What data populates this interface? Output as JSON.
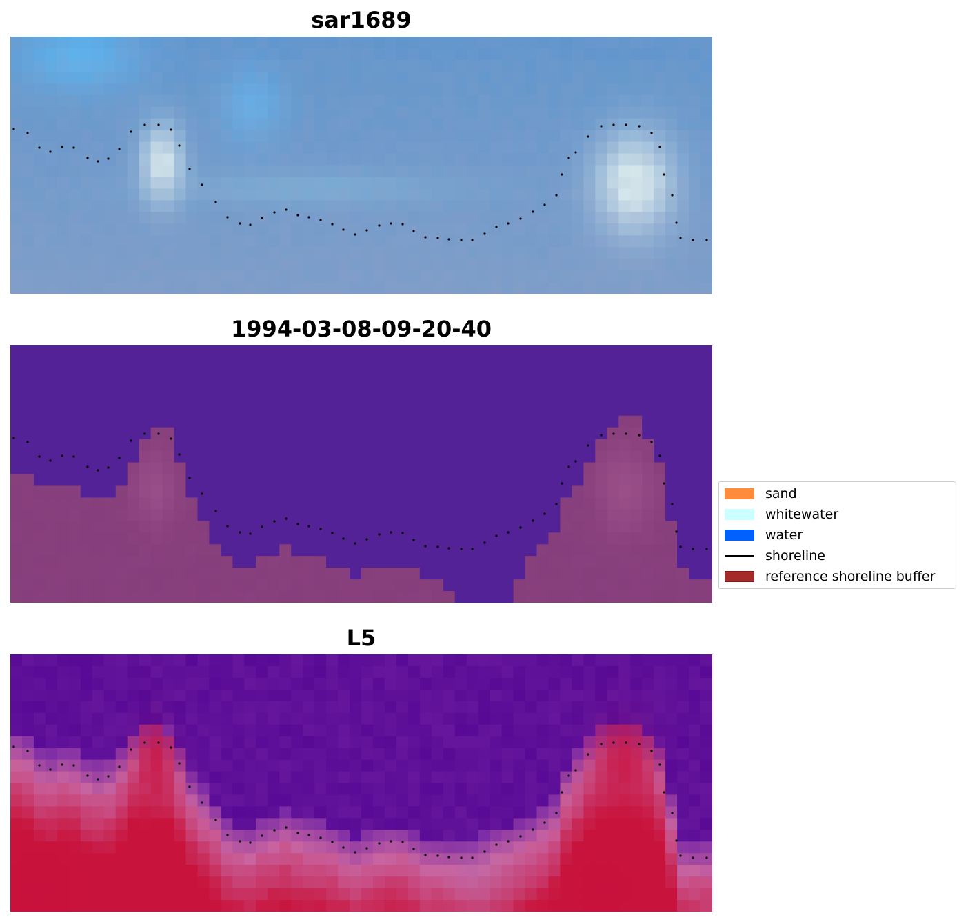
{
  "panels": [
    {
      "title": "sar1689",
      "kind": "rgb"
    },
    {
      "title": "1994-03-08-09-20-40",
      "kind": "classified"
    },
    {
      "title": "L5",
      "kind": "index"
    }
  ],
  "legend": {
    "items": [
      {
        "label": "sand",
        "color": "#ff8c3a",
        "style": "patch"
      },
      {
        "label": "whitewater",
        "color": "#ccffff",
        "style": "patch"
      },
      {
        "label": "water",
        "color": "#0061ff",
        "style": "patch"
      },
      {
        "label": "shoreline",
        "color": "#000000",
        "style": "line"
      },
      {
        "label": "reference shoreline buffer",
        "color": "#a52a2a",
        "style": "patch-outlined"
      }
    ]
  },
  "colors": {
    "buffer_overlay": "#521f94",
    "classified_land": "#863e7c",
    "background": "#ffffff"
  }
}
